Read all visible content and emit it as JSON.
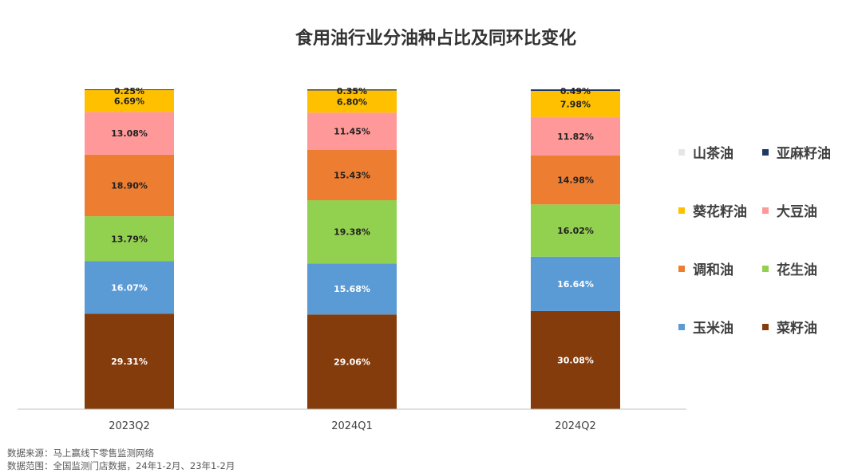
{
  "chart_data": {
    "type": "bar",
    "stacked": true,
    "title": "食用油行业分油种占比及同环比变化",
    "categories": [
      "2023Q2",
      "2024Q1",
      "2024Q2"
    ],
    "series": [
      {
        "name": "菜籽油",
        "color": "#843C0C",
        "label_color": "#ffffff",
        "values": [
          29.31,
          29.06,
          30.08
        ],
        "labels": [
          "29.31%",
          "29.06%",
          "30.08%"
        ]
      },
      {
        "name": "玉米油",
        "color": "#5B9BD5",
        "label_color": "#ffffff",
        "values": [
          16.07,
          15.68,
          16.64
        ],
        "labels": [
          "16.07%",
          "15.68%",
          "16.64%"
        ]
      },
      {
        "name": "花生油",
        "color": "#92D050",
        "label_color": "#222222",
        "values": [
          13.79,
          19.38,
          16.02
        ],
        "labels": [
          "13.79%",
          "19.38%",
          "16.02%"
        ]
      },
      {
        "name": "调和油",
        "color": "#ED7D31",
        "label_color": "#222222",
        "values": [
          18.9,
          15.43,
          14.98
        ],
        "labels": [
          "18.90%",
          "15.43%",
          "14.98%"
        ]
      },
      {
        "name": "大豆油",
        "color": "#FF9999",
        "label_color": "#222222",
        "values": [
          13.08,
          11.45,
          11.82
        ],
        "labels": [
          "13.08%",
          "11.45%",
          "11.82%"
        ]
      },
      {
        "name": "葵花籽油",
        "color": "#FFC000",
        "label_color": "#222222",
        "values": [
          6.69,
          6.8,
          7.98
        ],
        "labels": [
          "6.69%",
          "6.80%",
          "7.98%"
        ]
      },
      {
        "name": "亚麻籽油",
        "color": "#203864",
        "label_color": "#222222",
        "values": [
          0.25,
          0.35,
          0.49
        ],
        "labels": [
          "0.25%",
          "0.35%",
          "0.49%"
        ]
      },
      {
        "name": "山茶油",
        "color": "#E7E6E6",
        "label_color": "#222222",
        "values": [
          0.0,
          0.0,
          0.0
        ],
        "labels": []
      }
    ],
    "legend": {
      "placement": "right",
      "rows": [
        [
          "山茶油",
          "亚麻籽油"
        ],
        [
          "葵花籽油",
          "大豆油"
        ],
        [
          "调和油",
          "花生油"
        ],
        [
          "玉米油",
          "菜籽油"
        ]
      ]
    },
    "ylim": [
      0,
      100
    ],
    "grid": false
  },
  "footnotes": {
    "source": "数据来源：马上赢线下零售监测网络",
    "scope": "数据范围：全国监测门店数据，24年1-2月、23年1-2月"
  }
}
